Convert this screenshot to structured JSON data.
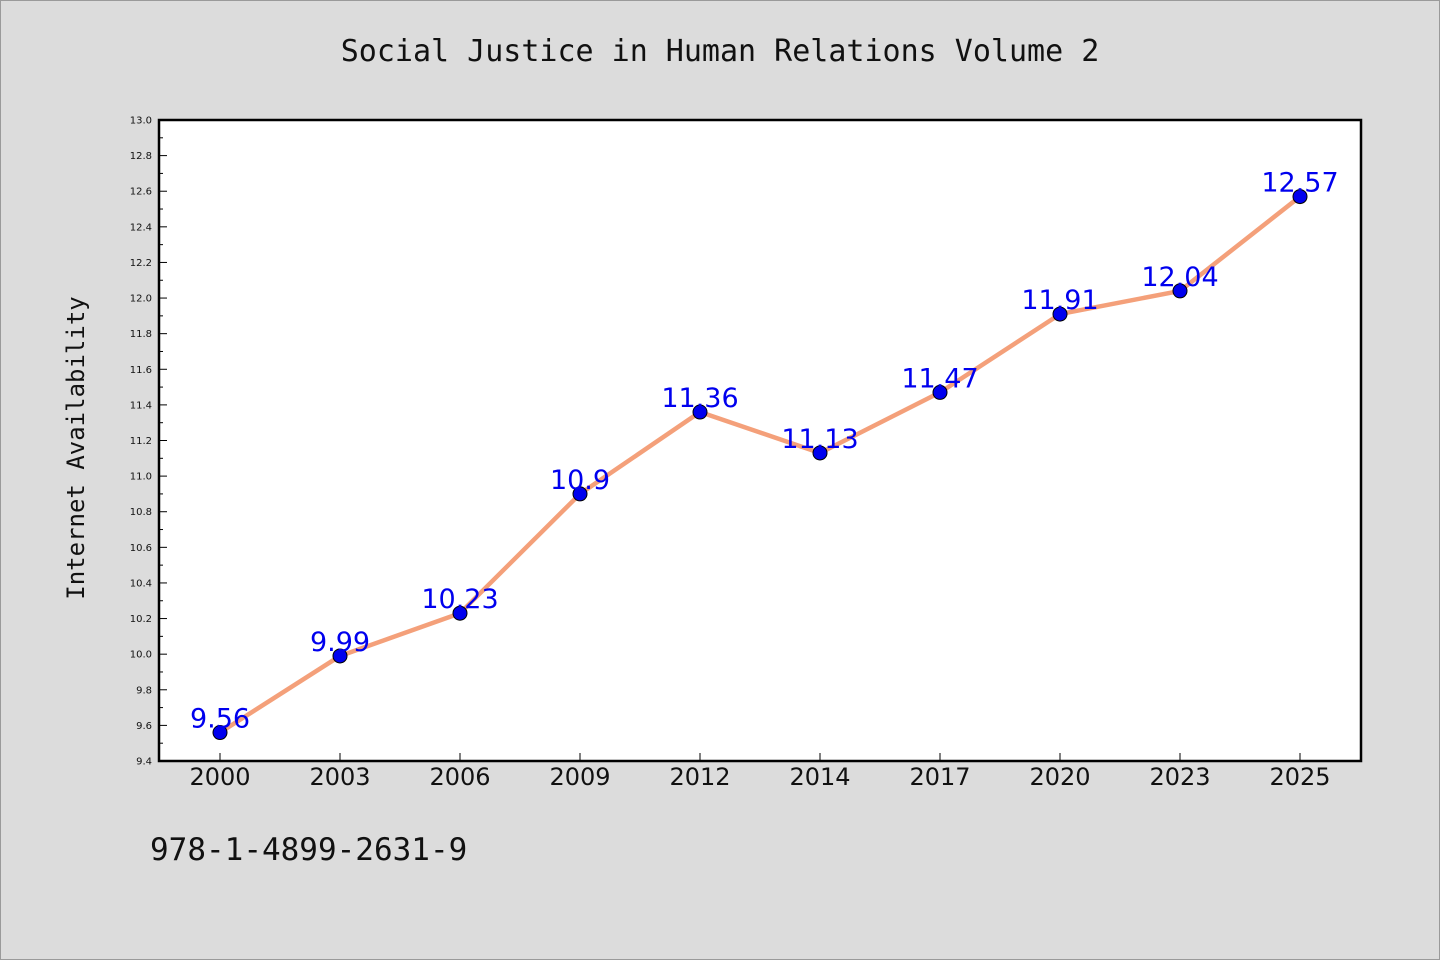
{
  "chart_data": {
    "type": "line",
    "title": "Social Justice in Human Relations Volume 2",
    "xlabel": "",
    "ylabel": "Internet Availability",
    "categories": [
      "2000",
      "2003",
      "2006",
      "2009",
      "2012",
      "2014",
      "2017",
      "2020",
      "2023",
      "2025"
    ],
    "series": [
      {
        "values": [
          9.56,
          9.99,
          10.23,
          10.9,
          11.36,
          11.13,
          11.47,
          11.91,
          12.04,
          12.57
        ],
        "data_labels": [
          "9.56",
          "9.99",
          "10.23",
          "10.9",
          "11.36",
          "11.13",
          "11.47",
          "11.91",
          "12.04",
          "12.57"
        ],
        "line_color": "#f4a07a",
        "marker_color": "#0000ee"
      }
    ],
    "ylim": [
      9.4,
      13.0
    ],
    "yticks": [
      "9.4",
      "9.6",
      "9.8",
      "10.0",
      "10.2",
      "10.4",
      "10.6",
      "10.8",
      "11.0",
      "11.2",
      "11.4",
      "11.6",
      "11.8",
      "12.0",
      "12.2",
      "12.4",
      "12.6",
      "12.8",
      "13.0"
    ],
    "grid": false,
    "legend": "none",
    "label_color": "#0000ee"
  },
  "footer": {
    "isbn": "978-1-4899-2631-9"
  },
  "colors": {
    "background": "#dcdcdc",
    "plot_background": "#ffffff"
  }
}
